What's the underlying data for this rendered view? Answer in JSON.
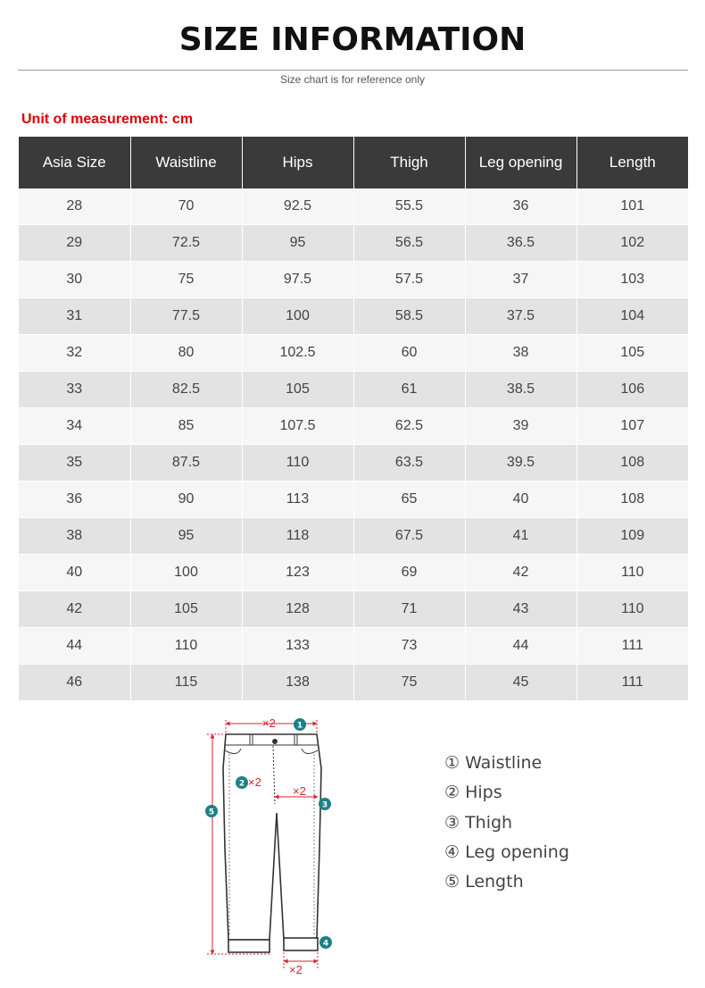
{
  "header": {
    "title": "SIZE INFORMATION",
    "subtitle": "Size chart is for reference only",
    "unit_label": "Unit of measurement: cm"
  },
  "table": {
    "columns": [
      "Asia Size",
      "Waistline",
      "Hips",
      "Thigh",
      "Leg opening",
      "Length"
    ],
    "rows": [
      [
        "28",
        "70",
        "92.5",
        "55.5",
        "36",
        "101"
      ],
      [
        "29",
        "72.5",
        "95",
        "56.5",
        "36.5",
        "102"
      ],
      [
        "30",
        "75",
        "97.5",
        "57.5",
        "37",
        "103"
      ],
      [
        "31",
        "77.5",
        "100",
        "58.5",
        "37.5",
        "104"
      ],
      [
        "32",
        "80",
        "102.5",
        "60",
        "38",
        "105"
      ],
      [
        "33",
        "82.5",
        "105",
        "61",
        "38.5",
        "106"
      ],
      [
        "34",
        "85",
        "107.5",
        "62.5",
        "39",
        "107"
      ],
      [
        "35",
        "87.5",
        "110",
        "63.5",
        "39.5",
        "108"
      ],
      [
        "36",
        "90",
        "113",
        "65",
        "40",
        "108"
      ],
      [
        "38",
        "95",
        "118",
        "67.5",
        "41",
        "109"
      ],
      [
        "40",
        "100",
        "123",
        "69",
        "42",
        "110"
      ],
      [
        "42",
        "105",
        "128",
        "71",
        "43",
        "110"
      ],
      [
        "44",
        "110",
        "133",
        "73",
        "44",
        "111"
      ],
      [
        "46",
        "115",
        "138",
        "75",
        "45",
        "111"
      ]
    ]
  },
  "diagram": {
    "markers": [
      "1",
      "2",
      "3",
      "4",
      "5"
    ],
    "multiplier_label": "×2",
    "marker_color": "#1f7f86",
    "arrow_color": "#d9232e"
  },
  "legend": {
    "items": [
      "① Waistline",
      "② Hips",
      "③ Thigh",
      "④ Leg opening",
      "⑤ Length"
    ]
  }
}
